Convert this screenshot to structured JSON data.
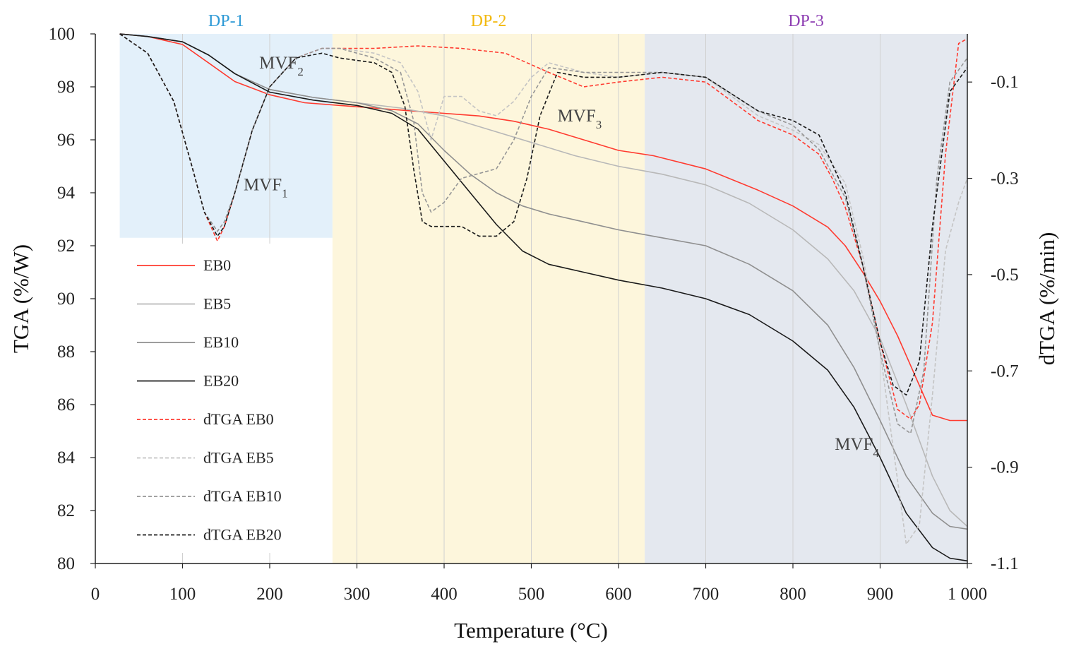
{
  "chart_data": {
    "type": "line",
    "title": "",
    "xlabel": "Temperature (°C)",
    "ylabel": "TGA (%/W)",
    "y2label": "dTGA (%/min)",
    "xlim": [
      0,
      1000
    ],
    "ylim": [
      80,
      100
    ],
    "y2lim": [
      -1.1,
      0.0
    ],
    "x_ticks": [
      0,
      100,
      200,
      300,
      400,
      500,
      600,
      700,
      800,
      900,
      1000
    ],
    "x_tick_labels": [
      "0",
      "100",
      "200",
      "300",
      "400",
      "500",
      "600",
      "700",
      "800",
      "900",
      "1 000"
    ],
    "y_ticks": [
      80,
      82,
      84,
      86,
      88,
      90,
      92,
      94,
      96,
      98,
      100
    ],
    "y2_ticks": [
      -0.1,
      -0.3,
      -0.5,
      -0.7,
      -0.9,
      -1.1
    ],
    "grid": "vertical",
    "legend_position": "left",
    "regions": [
      {
        "label": "DP-1",
        "x_start": 28,
        "x_end": 272,
        "y_min": 92.3,
        "fill": "#e3f0fa",
        "label_color": "#2e9ad6"
      },
      {
        "label": "DP-2",
        "x_start": 272,
        "x_end": 630,
        "y_min": 80,
        "fill": "#fdf6dc",
        "label_color": "#f2b90f"
      },
      {
        "label": "DP-3",
        "x_start": 630,
        "x_end": 1000,
        "y_min": 80,
        "fill": "#e4e8ef",
        "label_color": "#8e3fb3"
      }
    ],
    "annotations": [
      {
        "text": "MVF",
        "sub": "1",
        "x": 170,
        "y": 94.1
      },
      {
        "text": "MVF",
        "sub": "2",
        "x": 188,
        "y": 98.7
      },
      {
        "text": "MVF",
        "sub": "3",
        "x": 530,
        "y": 96.7
      },
      {
        "text": "MVF",
        "sub": "4",
        "x": 848,
        "y": 84.3
      }
    ],
    "series": [
      {
        "name": "EB0",
        "axis": "left",
        "dash": "solid",
        "color": "#ff3b30",
        "x": [
          28,
          60,
          100,
          130,
          160,
          200,
          240,
          280,
          320,
          360,
          400,
          440,
          480,
          520,
          560,
          600,
          640,
          700,
          760,
          800,
          840,
          860,
          880,
          900,
          920,
          940,
          960,
          980,
          1000
        ],
        "y": [
          100.0,
          99.9,
          99.6,
          98.9,
          98.2,
          97.7,
          97.4,
          97.3,
          97.2,
          97.1,
          97.0,
          96.9,
          96.7,
          96.4,
          96.0,
          95.6,
          95.4,
          94.9,
          94.1,
          93.5,
          92.7,
          92.0,
          91.0,
          89.9,
          88.6,
          87.1,
          85.6,
          85.4,
          85.4
        ]
      },
      {
        "name": "EB5",
        "axis": "left",
        "dash": "solid",
        "color": "#b8b8b8",
        "x": [
          28,
          60,
          100,
          130,
          160,
          200,
          250,
          300,
          350,
          400,
          450,
          500,
          550,
          600,
          650,
          700,
          750,
          800,
          840,
          870,
          900,
          930,
          960,
          980,
          1000
        ],
        "y": [
          100.0,
          99.9,
          99.7,
          99.2,
          98.5,
          97.9,
          97.6,
          97.4,
          97.2,
          96.9,
          96.4,
          95.9,
          95.4,
          95.0,
          94.7,
          94.3,
          93.6,
          92.6,
          91.5,
          90.3,
          88.5,
          86.0,
          83.3,
          82.0,
          81.4
        ]
      },
      {
        "name": "EB10",
        "axis": "left",
        "dash": "solid",
        "color": "#8f8f8f",
        "x": [
          28,
          60,
          100,
          130,
          160,
          200,
          250,
          300,
          340,
          370,
          400,
          430,
          460,
          490,
          520,
          560,
          600,
          650,
          700,
          750,
          800,
          840,
          870,
          900,
          930,
          960,
          980,
          1000
        ],
        "y": [
          100.0,
          99.9,
          99.7,
          99.2,
          98.5,
          97.9,
          97.6,
          97.4,
          97.1,
          96.6,
          95.6,
          94.7,
          94.0,
          93.5,
          93.2,
          92.9,
          92.6,
          92.3,
          92.0,
          91.3,
          90.3,
          89.0,
          87.4,
          85.4,
          83.3,
          81.9,
          81.4,
          81.3
        ]
      },
      {
        "name": "EB20",
        "axis": "left",
        "dash": "solid",
        "color": "#1a1a1a",
        "x": [
          28,
          60,
          100,
          130,
          160,
          200,
          250,
          300,
          340,
          370,
          400,
          430,
          460,
          490,
          520,
          560,
          600,
          650,
          700,
          750,
          800,
          840,
          870,
          900,
          930,
          960,
          980,
          1000
        ],
        "y": [
          100.0,
          99.9,
          99.7,
          99.2,
          98.5,
          97.8,
          97.5,
          97.3,
          97.0,
          96.4,
          95.2,
          94.0,
          92.8,
          91.8,
          91.3,
          91.0,
          90.7,
          90.4,
          90.0,
          89.4,
          88.4,
          87.3,
          85.9,
          84.0,
          81.9,
          80.6,
          80.2,
          80.1
        ]
      },
      {
        "name": "dTGA EB0",
        "axis": "right",
        "dash": "dashed",
        "color": "#ff3b30",
        "x": [
          28,
          60,
          90,
          110,
          125,
          140,
          148,
          160,
          180,
          200,
          230,
          260,
          280,
          320,
          370,
          420,
          470,
          520,
          560,
          600,
          650,
          700,
          760,
          800,
          830,
          845,
          860,
          880,
          900,
          920,
          935,
          945,
          960,
          975,
          990,
          1000
        ],
        "y": [
          0.0,
          -0.04,
          -0.14,
          -0.27,
          -0.37,
          -0.43,
          -0.4,
          -0.33,
          -0.2,
          -0.11,
          -0.05,
          -0.03,
          -0.03,
          -0.03,
          -0.025,
          -0.03,
          -0.04,
          -0.08,
          -0.11,
          -0.1,
          -0.09,
          -0.1,
          -0.18,
          -0.21,
          -0.25,
          -0.3,
          -0.36,
          -0.48,
          -0.64,
          -0.78,
          -0.8,
          -0.77,
          -0.6,
          -0.25,
          -0.02,
          -0.01
        ]
      },
      {
        "name": "dTGA EB5",
        "axis": "right",
        "dash": "dashed",
        "color": "#c4c4c4",
        "x": [
          28,
          60,
          90,
          110,
          125,
          140,
          148,
          160,
          180,
          200,
          230,
          260,
          280,
          320,
          350,
          370,
          385,
          400,
          420,
          440,
          460,
          480,
          500,
          520,
          560,
          600,
          650,
          700,
          760,
          800,
          830,
          860,
          880,
          900,
          915,
          930,
          945,
          960,
          975,
          990,
          1000
        ],
        "y": [
          0.0,
          -0.04,
          -0.14,
          -0.27,
          -0.37,
          -0.41,
          -0.39,
          -0.33,
          -0.2,
          -0.11,
          -0.05,
          -0.03,
          -0.03,
          -0.04,
          -0.06,
          -0.12,
          -0.22,
          -0.13,
          -0.13,
          -0.16,
          -0.17,
          -0.14,
          -0.09,
          -0.06,
          -0.08,
          -0.09,
          -0.08,
          -0.09,
          -0.17,
          -0.2,
          -0.23,
          -0.31,
          -0.46,
          -0.66,
          -0.86,
          -1.06,
          -1.02,
          -0.75,
          -0.45,
          -0.35,
          -0.3
        ]
      },
      {
        "name": "dTGA EB10",
        "axis": "right",
        "dash": "dashed",
        "color": "#969696",
        "x": [
          28,
          60,
          90,
          110,
          125,
          140,
          148,
          160,
          180,
          200,
          230,
          260,
          280,
          320,
          350,
          365,
          375,
          385,
          400,
          420,
          440,
          460,
          480,
          500,
          520,
          560,
          600,
          650,
          700,
          760,
          800,
          830,
          860,
          880,
          900,
          920,
          935,
          950,
          965,
          980,
          1000
        ],
        "y": [
          0.0,
          -0.04,
          -0.14,
          -0.27,
          -0.37,
          -0.41,
          -0.39,
          -0.33,
          -0.2,
          -0.11,
          -0.05,
          -0.03,
          -0.03,
          -0.05,
          -0.08,
          -0.18,
          -0.33,
          -0.37,
          -0.35,
          -0.3,
          -0.29,
          -0.28,
          -0.22,
          -0.13,
          -0.07,
          -0.08,
          -0.08,
          -0.08,
          -0.09,
          -0.16,
          -0.19,
          -0.24,
          -0.34,
          -0.48,
          -0.66,
          -0.81,
          -0.83,
          -0.7,
          -0.3,
          -0.1,
          -0.05
        ]
      },
      {
        "name": "dTGA EB20",
        "axis": "right",
        "dash": "dashed",
        "color": "#1a1a1a",
        "x": [
          28,
          60,
          90,
          110,
          125,
          140,
          148,
          160,
          180,
          200,
          230,
          260,
          280,
          320,
          340,
          355,
          365,
          375,
          385,
          400,
          420,
          440,
          460,
          480,
          495,
          510,
          530,
          560,
          600,
          650,
          700,
          760,
          800,
          830,
          860,
          880,
          900,
          915,
          930,
          945,
          960,
          980,
          1000
        ],
        "y": [
          0.0,
          -0.04,
          -0.14,
          -0.27,
          -0.37,
          -0.42,
          -0.4,
          -0.33,
          -0.2,
          -0.11,
          -0.05,
          -0.04,
          -0.05,
          -0.06,
          -0.08,
          -0.15,
          -0.28,
          -0.39,
          -0.4,
          -0.4,
          -0.4,
          -0.42,
          -0.42,
          -0.39,
          -0.3,
          -0.17,
          -0.08,
          -0.09,
          -0.09,
          -0.08,
          -0.09,
          -0.16,
          -0.18,
          -0.21,
          -0.33,
          -0.48,
          -0.64,
          -0.73,
          -0.75,
          -0.68,
          -0.4,
          -0.12,
          -0.07
        ]
      }
    ]
  }
}
